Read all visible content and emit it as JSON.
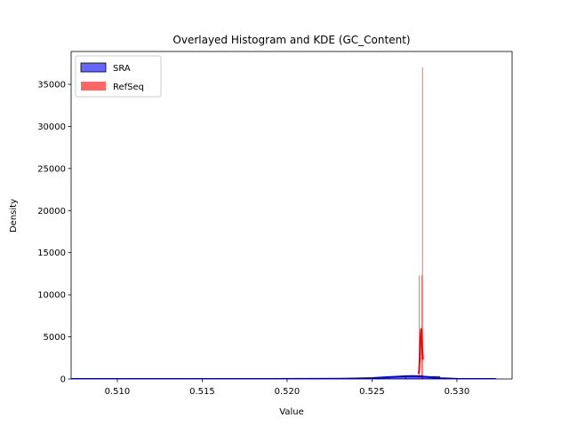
{
  "chart_data": {
    "type": "histogram",
    "title": "Overlayed Histogram and KDE (GC_Content)",
    "xlabel": "Value",
    "ylabel": "Density",
    "xlim": [
      0.50728,
      0.53325
    ],
    "ylim": [
      0,
      38900
    ],
    "xticks": [
      {
        "value": 0.51,
        "label": "0.510"
      },
      0.515,
      {
        "value": 0.52,
        "label": "0.520"
      },
      0.525,
      {
        "value": 0.53,
        "label": "0.530"
      }
    ],
    "yticks": [
      0,
      5000,
      10000,
      15000,
      20000,
      25000,
      30000,
      35000
    ],
    "legend": "upper left",
    "alpha": 0.6,
    "series": [
      {
        "name": "SRA",
        "color": "#0000ff",
        "edgecolor": "#000000",
        "bins": [
          0.507,
          0.508,
          0.509,
          0.51,
          0.511,
          0.512,
          0.513,
          0.514,
          0.515,
          0.516,
          0.517,
          0.518,
          0.519,
          0.52,
          0.521,
          0.522,
          0.523,
          0.524,
          0.525,
          0.526,
          0.527,
          0.528,
          0.529,
          0.53,
          0.531,
          0.532
        ],
        "values": [
          1,
          0,
          0,
          0,
          1,
          0,
          0,
          1,
          0,
          0,
          1,
          2,
          2,
          3,
          5,
          8,
          12,
          40,
          120,
          250,
          400,
          300,
          30,
          5,
          1
        ],
        "kde": {
          "x": [
            0.507,
            0.51,
            0.513,
            0.516,
            0.519,
            0.521,
            0.523,
            0.524,
            0.525,
            0.526,
            0.527,
            0.5275,
            0.528,
            0.529,
            0.53,
            0.531,
            0.5323
          ],
          "y": [
            2,
            3,
            3,
            4,
            6,
            10,
            25,
            50,
            110,
            230,
            330,
            340,
            290,
            90,
            15,
            3,
            1
          ]
        }
      },
      {
        "name": "RefSeq",
        "color": "#ff0000",
        "bins": [
          0.5277,
          0.52775,
          0.5278,
          0.52785,
          0.5279,
          0.52795,
          0.528,
          0.52805
        ],
        "values": [
          0,
          12300,
          0,
          0,
          12300,
          37000,
          0
        ],
        "kde": {
          "x": [
            0.52775,
            0.52778,
            0.52781,
            0.52784,
            0.52787,
            0.5279,
            0.52793,
            0.52796,
            0.528
          ],
          "y": [
            600,
            1200,
            2500,
            4200,
            5600,
            6000,
            5000,
            3600,
            2300
          ]
        }
      }
    ]
  }
}
